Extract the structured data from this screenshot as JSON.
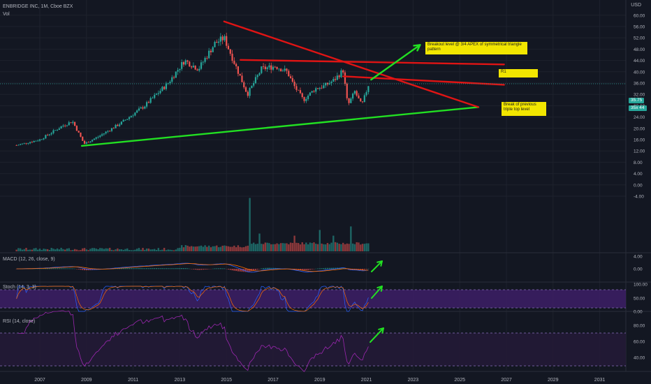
{
  "chart_data": [
    {
      "type": "candlestick",
      "title": "ENBRIDGE INC, 1M, Cboe BZX",
      "ylabel": "USD",
      "y_ticks": [
        "60.00",
        "56.00",
        "52.00",
        "48.00",
        "44.00",
        "40.00",
        "36.00",
        "32.00",
        "28.00",
        "24.00",
        "20.00",
        "16.00",
        "12.00",
        "8.00",
        "4.00",
        "0.00",
        "-4.00"
      ],
      "x_ticks": [
        "2007",
        "2009",
        "2011",
        "2013",
        "2015",
        "2017",
        "2019",
        "2021",
        "2023",
        "2025",
        "2027",
        "2029",
        "2031"
      ],
      "price_tags": {
        "last_price": "35.75",
        "secondary": "35x 44"
      },
      "anchors": [
        {
          "date": "2006.0",
          "close": 14.0
        },
        {
          "date": "2007.0",
          "close": 16.0
        },
        {
          "date": "2008.0",
          "close": 21.0
        },
        {
          "date": "2008.4",
          "close": 22.5
        },
        {
          "date": "2008.9",
          "close": 14.5
        },
        {
          "date": "2009.5",
          "close": 17.0
        },
        {
          "date": "2010.5",
          "close": 22.0
        },
        {
          "date": "2011.5",
          "close": 28.0
        },
        {
          "date": "2012.5",
          "close": 36.0
        },
        {
          "date": "2013.2",
          "close": 44.0
        },
        {
          "date": "2013.8",
          "close": 41.0
        },
        {
          "date": "2014.5",
          "close": 50.0
        },
        {
          "date": "2014.9",
          "close": 52.0
        },
        {
          "date": "2015.5",
          "close": 40.0
        },
        {
          "date": "2015.9",
          "close": 32.0
        },
        {
          "date": "2016.5",
          "close": 41.0
        },
        {
          "date": "2017.1",
          "close": 42.0
        },
        {
          "date": "2017.6",
          "close": 40.0
        },
        {
          "date": "2017.9",
          "close": 35.0
        },
        {
          "date": "2018.3",
          "close": 30.0
        },
        {
          "date": "2018.8",
          "close": 34.0
        },
        {
          "date": "2019.2",
          "close": 35.0
        },
        {
          "date": "2019.6",
          "close": 37.0
        },
        {
          "date": "2020.0",
          "close": 40.5
        },
        {
          "date": "2020.2",
          "close": 28.0
        },
        {
          "date": "2020.5",
          "close": 33.0
        },
        {
          "date": "2020.8",
          "close": 28.0
        },
        {
          "date": "2021.1",
          "close": 35.75
        }
      ],
      "volume_spikes": [
        {
          "date": "2016.0",
          "value": 7.5
        },
        {
          "date": "2016.4",
          "value": 2.5
        },
        {
          "date": "2017.9",
          "value": 2.2
        },
        {
          "date": "2019.0",
          "value": 3.0
        },
        {
          "date": "2019.6",
          "value": 2.2
        },
        {
          "date": "2020.3",
          "value": 3.5
        }
      ],
      "trendlines": [
        {
          "name": "lower support",
          "color": "#22e022",
          "from": {
            "date": "2008.8",
            "price": 13.8
          },
          "to": {
            "date": "2025.8",
            "price": 27.5
          }
        },
        {
          "name": "upper resistance",
          "color": "#e01414",
          "from": {
            "date": "2014.9",
            "price": 57.8
          },
          "to": {
            "date": "2025.8",
            "price": 27.5
          }
        },
        {
          "name": "R1 level",
          "color": "#e01414",
          "from": {
            "date": "2015.6",
            "price": 44.2
          },
          "to": {
            "date": "2026.9",
            "price": 42.6
          }
        },
        {
          "name": "triple top level",
          "color": "#e01414",
          "from": {
            "date": "2020.0",
            "price": 38.4
          },
          "to": {
            "date": "2026.9",
            "price": 35.4
          }
        },
        {
          "name": "breakout arrow",
          "color": "#22e022",
          "from": {
            "date": "2021.2",
            "price": 37.2
          },
          "to": {
            "date": "2023.3",
            "price": 49.5
          }
        }
      ],
      "annotations": [
        {
          "text": "Breakout level @ 3/4 APEX of symmetrical triangle pattern"
        },
        {
          "text": "R1"
        },
        {
          "text": "Break of previous triple top level"
        }
      ]
    },
    {
      "type": "line",
      "title": "MACD (12, 26, close, 9)",
      "y_ticks": [
        "4.00",
        "0.00"
      ]
    },
    {
      "type": "line",
      "title": "Stoch (14, 3, 3)",
      "y_ticks": [
        "100.00",
        "50.00",
        "0.00"
      ]
    },
    {
      "type": "line",
      "title": "RSI (14, close)",
      "y_ticks": [
        "80.00",
        "60.00",
        "40.00"
      ]
    }
  ],
  "header": {
    "symbol_line": "ENBRIDGE INC, 1M, Cboe BZX",
    "vol_label": "Vol",
    "currency": "USD"
  },
  "colors": {
    "background": "#131722",
    "up": "#26a69a",
    "down": "#ef5350",
    "support": "#22e022",
    "resistance": "#e01414",
    "band": "#3d1f66",
    "rsi_line": "#9c27b0",
    "note_bg": "#f2e600"
  }
}
